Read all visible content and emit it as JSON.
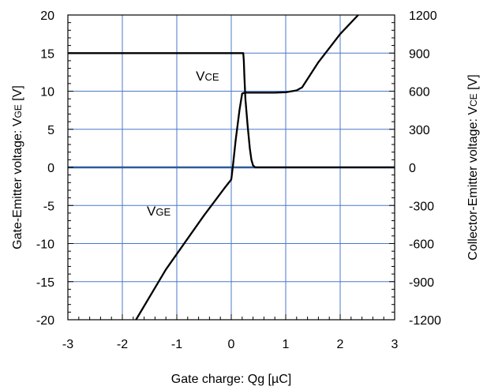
{
  "chart_data": {
    "type": "line",
    "xlabel": "Gate charge: Qg [µC]",
    "ylabel_left": "Gate-Emitter voltage:  Vɢᴇ [V]",
    "ylabel_left_parts": {
      "prefix": "Gate-Emitter voltage:  V",
      "sub": "GE",
      "suffix": " [V]"
    },
    "ylabel_right_parts": {
      "prefix": "Collector-Emitter voltage: V",
      "sub": "CE",
      "suffix": " [V]"
    },
    "xlim": [
      -3,
      3
    ],
    "ylim_left": [
      -20,
      20
    ],
    "ylim_right": [
      -1200,
      1200
    ],
    "grid": true,
    "x_ticks": [
      "-3",
      "-2",
      "-1",
      "0",
      "1",
      "2",
      "3"
    ],
    "y_left_ticks": [
      "20",
      "15",
      "10",
      "5",
      "0",
      "-5",
      "-10",
      "-15",
      "-20"
    ],
    "y_right_ticks": [
      "1200",
      "900",
      "600",
      "300",
      "0",
      "-300",
      "-600",
      "-900",
      "-1200"
    ],
    "zero_line_color": "#2e5a9a",
    "grid_color": "#4a78c8",
    "annotations": [
      {
        "id": "vce",
        "base": "V",
        "sub": "CE",
        "x": -0.65,
        "y": 11.4
      },
      {
        "id": "vge",
        "base": "V",
        "sub": "GE",
        "x": -1.55,
        "y": -6.3
      }
    ],
    "series": [
      {
        "axis": "right",
        "x": [
          -3,
          0.22,
          0.23,
          0.24,
          0.26,
          0.3,
          0.34,
          0.37,
          0.4,
          0.44,
          3.0
        ],
        "y": [
          900,
          900,
          840,
          720,
          540,
          330,
          150,
          60,
          15,
          0,
          0
        ]
      },
      {
        "axis": "left",
        "x": [
          -1.75,
          -1.2,
          -0.5,
          -0.1,
          0.0,
          0.03,
          0.08,
          0.15,
          0.2,
          0.25,
          0.5,
          0.8,
          1.0,
          1.2,
          1.3,
          1.6,
          2.0,
          2.33
        ],
        "y": [
          -20,
          -13.4,
          -6.3,
          -2.5,
          -1.6,
          0.2,
          3.5,
          7.5,
          9.7,
          9.8,
          9.8,
          9.8,
          9.85,
          10.1,
          10.5,
          13.8,
          17.5,
          20
        ]
      }
    ]
  }
}
